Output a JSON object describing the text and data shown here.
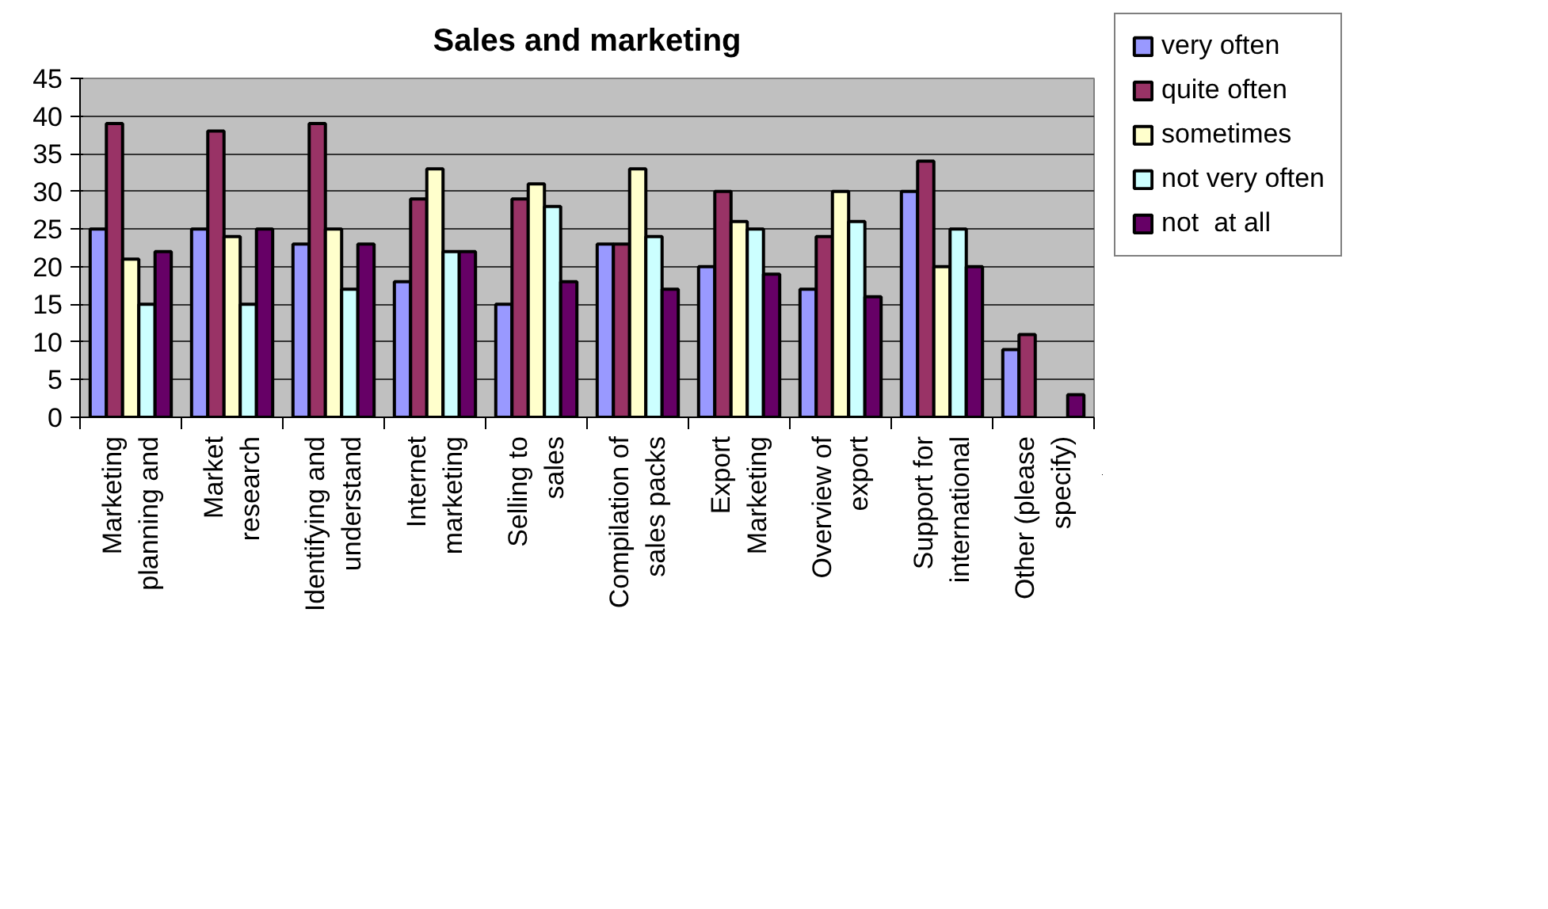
{
  "chart_data": {
    "type": "bar",
    "title": "Sales and marketing",
    "categories": [
      "Marketing\nplanning and",
      "Market\nresearch",
      "Identifying and\nunderstand",
      "Internet\nmarketing",
      "Selling to\nsales",
      "Compilation of\nsales packs",
      "Export\nMarketing",
      "Overview of\nexport",
      "Support for\ninternational",
      "Other (please\nspecify)"
    ],
    "series": [
      {
        "name": "very often",
        "color": "#9999ff",
        "values": [
          25,
          25,
          23,
          18,
          15,
          23,
          20,
          17,
          30,
          9
        ]
      },
      {
        "name": "quite often",
        "color": "#993366",
        "values": [
          39,
          38,
          39,
          29,
          29,
          23,
          30,
          24,
          34,
          11
        ]
      },
      {
        "name": "sometimes",
        "color": "#ffffcc",
        "values": [
          21,
          24,
          25,
          33,
          31,
          33,
          26,
          30,
          20,
          null
        ]
      },
      {
        "name": "not very often",
        "color": "#ccffff",
        "values": [
          15,
          15,
          17,
          22,
          28,
          24,
          25,
          26,
          25,
          null
        ]
      },
      {
        "name": "not  at all",
        "color": "#660066",
        "values": [
          22,
          25,
          23,
          22,
          18,
          17,
          19,
          16,
          20,
          3
        ]
      }
    ],
    "ylim": [
      0,
      45
    ],
    "yticks": [
      0,
      5,
      10,
      15,
      20,
      25,
      30,
      35,
      40,
      45
    ],
    "grid": "y",
    "legend": "right"
  }
}
